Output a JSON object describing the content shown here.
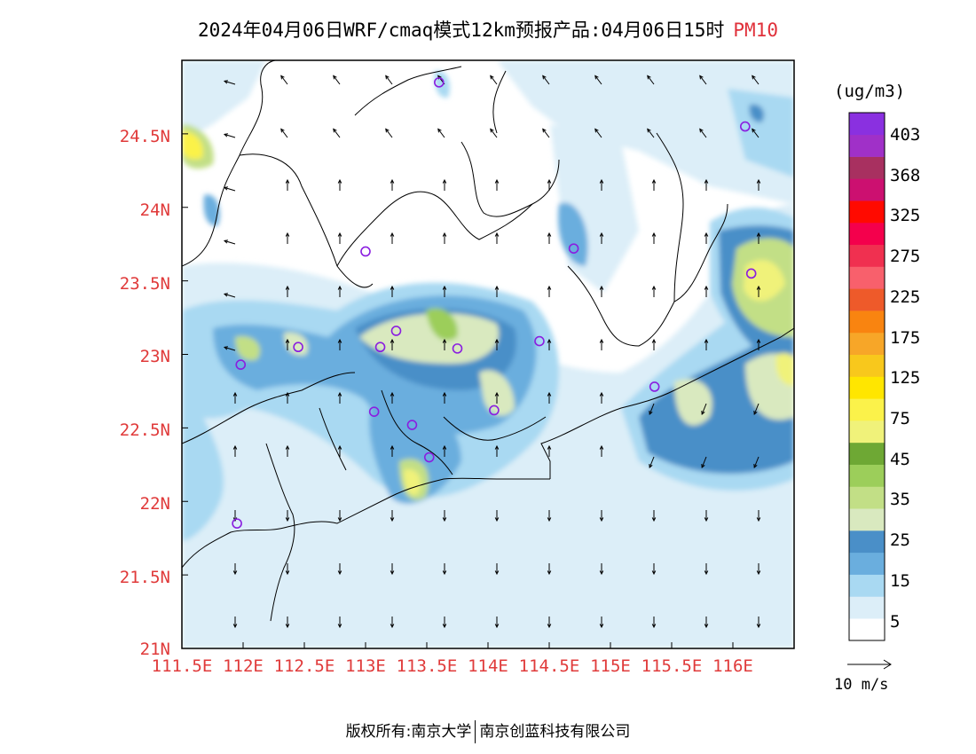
{
  "title": {
    "main": "2024年04月06日WRF/cmaq模式12km预报产品:04月06日15时",
    "variable": "PM10"
  },
  "axes": {
    "lat_labels": [
      "24.5N",
      "24N",
      "23.5N",
      "23N",
      "22.5N",
      "22N",
      "21.5N",
      "21N"
    ],
    "lon_labels": [
      "111.5E",
      "112E",
      "112.5E",
      "113E",
      "113.5E",
      "114E",
      "114.5E",
      "115E",
      "115.5E",
      "116E"
    ],
    "lat_range": [
      21.0,
      25.0
    ],
    "lon_range": [
      111.5,
      116.5
    ],
    "label_color": "#e03a3a"
  },
  "colorbar": {
    "units": "(ug/m3)",
    "labels": [
      "403",
      "368",
      "325",
      "275",
      "225",
      "175",
      "125",
      "75",
      "45",
      "35",
      "25",
      "15",
      "5"
    ],
    "colors": [
      "#ffffff",
      "#dceef8",
      "#a9d9f2",
      "#6aaede",
      "#4a8fc8",
      "#d9e9bf",
      "#c2df86",
      "#9cce5a",
      "#6ea834",
      "#f0f27a",
      "#fbf24a",
      "#ffe600",
      "#f8c81c",
      "#f7a628",
      "#f98410",
      "#ee5a2a",
      "#f8606c",
      "#f03050",
      "#f4004c",
      "#ff0a00",
      "#cc1070",
      "#a83060",
      "#a030c8",
      "#8a30e0"
    ]
  },
  "vector_legend": {
    "label": "10 m/s"
  },
  "stations": [
    {
      "lon": 113.6,
      "lat": 24.85
    },
    {
      "lon": 116.1,
      "lat": 24.55
    },
    {
      "lon": 113.0,
      "lat": 23.7
    },
    {
      "lon": 114.7,
      "lat": 23.72
    },
    {
      "lon": 116.15,
      "lat": 23.55
    },
    {
      "lon": 113.25,
      "lat": 23.16
    },
    {
      "lon": 113.12,
      "lat": 23.05
    },
    {
      "lon": 112.45,
      "lat": 23.05
    },
    {
      "lon": 111.98,
      "lat": 22.93
    },
    {
      "lon": 113.75,
      "lat": 23.04
    },
    {
      "lon": 114.42,
      "lat": 23.09
    },
    {
      "lon": 115.36,
      "lat": 22.78
    },
    {
      "lon": 113.07,
      "lat": 22.61
    },
    {
      "lon": 113.38,
      "lat": 22.52
    },
    {
      "lon": 114.05,
      "lat": 22.62
    },
    {
      "lon": 113.52,
      "lat": 22.3
    },
    {
      "lon": 111.95,
      "lat": 21.85
    }
  ],
  "footer": {
    "left": "版权所有:南京大学",
    "right": "南京创蓝科技有限公司"
  }
}
